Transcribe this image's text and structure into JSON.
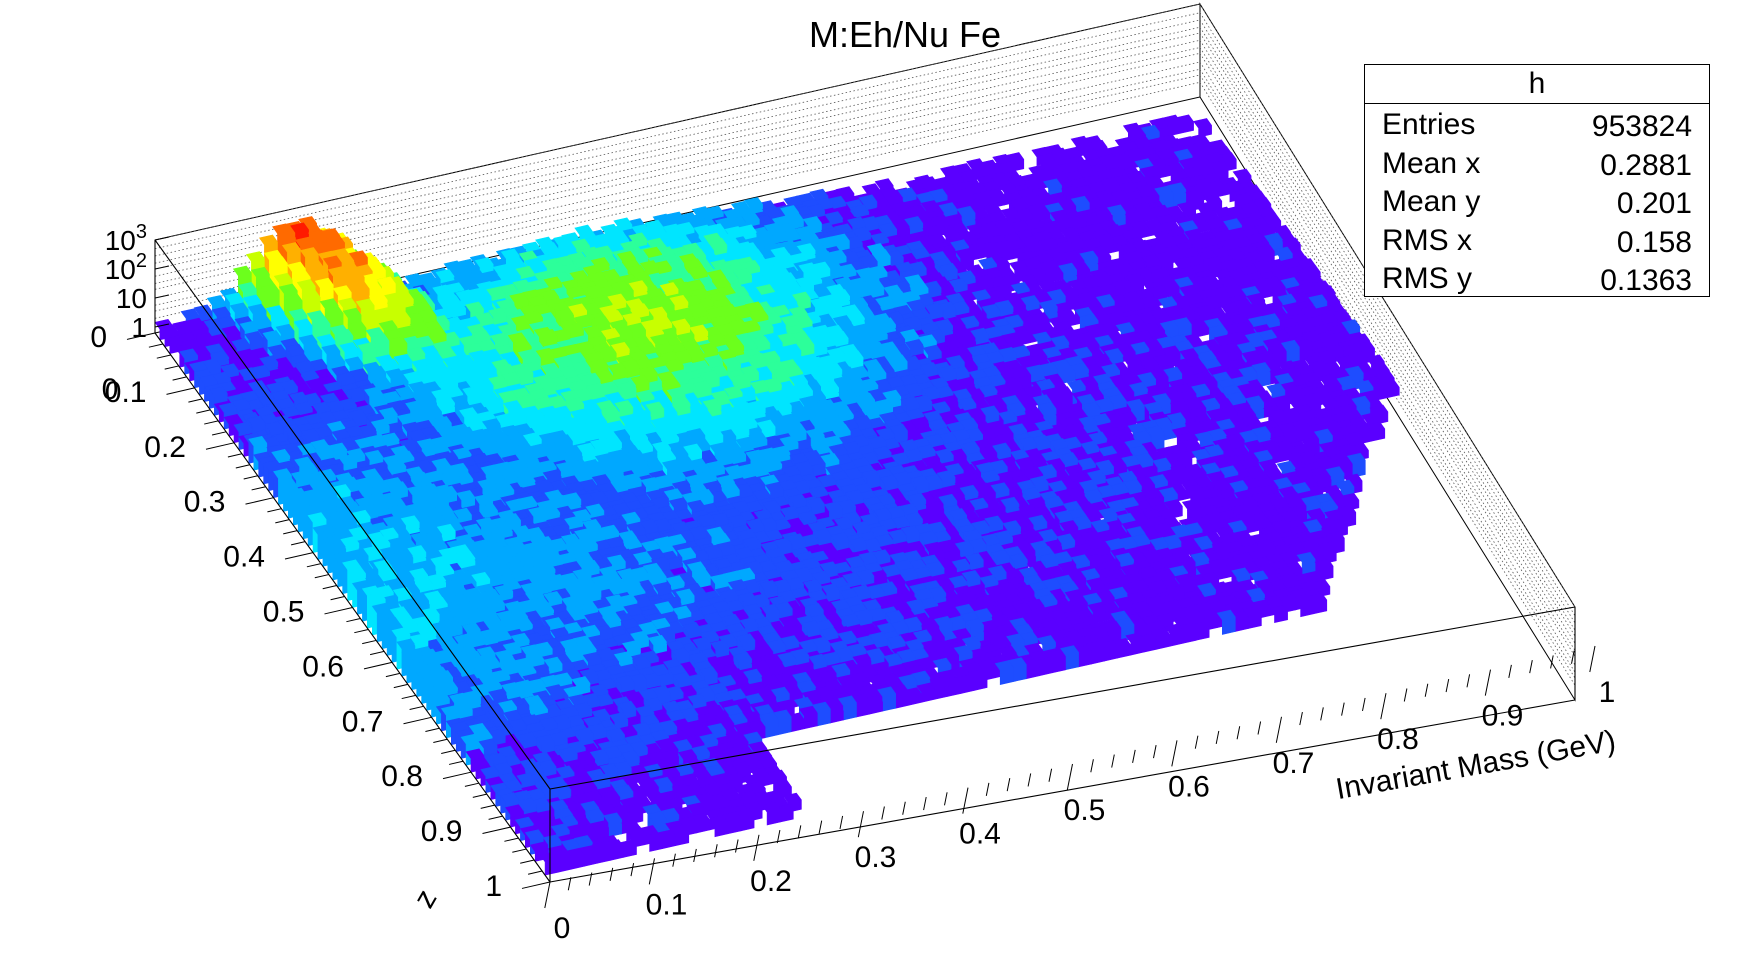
{
  "title": "M:Eh/Nu Fe",
  "stats_box": {
    "name": "h",
    "rows": [
      {
        "key": "Entries",
        "value": "953824"
      },
      {
        "key": "Mean x",
        "value": "0.2881"
      },
      {
        "key": "Mean y",
        "value": "0.201"
      },
      {
        "key": "RMS x",
        "value": "0.158"
      },
      {
        "key": "RMS y",
        "value": "0.1363"
      }
    ]
  },
  "chart_data": {
    "type": "heatmap",
    "title": "M:Eh/Nu Fe",
    "style": "lego-3d-colz",
    "xlabel": "Invariant Mass (GeV)",
    "ylabel": "z",
    "zscale": "log",
    "xlim": [
      0,
      1
    ],
    "ylim": [
      0,
      1
    ],
    "x_ticks": [
      "0",
      "0.1",
      "0.2",
      "0.3",
      "0.4",
      "0.5",
      "0.6",
      "0.7",
      "0.8",
      "0.9",
      "1"
    ],
    "y_ticks": [
      "0",
      "0.1",
      "0.2",
      "0.3",
      "0.4",
      "0.5",
      "0.6",
      "0.7",
      "0.8",
      "0.9",
      "1"
    ],
    "z_ticks": [
      {
        "base": "1",
        "exp": ""
      },
      {
        "base": "10",
        "exp": ""
      },
      {
        "base": "10",
        "exp": "2"
      },
      {
        "base": "10",
        "exp": "3"
      }
    ],
    "palette": [
      "#5a00ff",
      "#1e4dff",
      "#00a8ff",
      "#00e5ff",
      "#2cff9a",
      "#6cff1c",
      "#c8ff00",
      "#ffff00",
      "#ffb000",
      "#ff6a00",
      "#ff1a00"
    ],
    "entries": 953824,
    "mean_x": 0.2881,
    "mean_y": 0.201,
    "rms_x": 0.158,
    "rms_y": 0.1363
  }
}
